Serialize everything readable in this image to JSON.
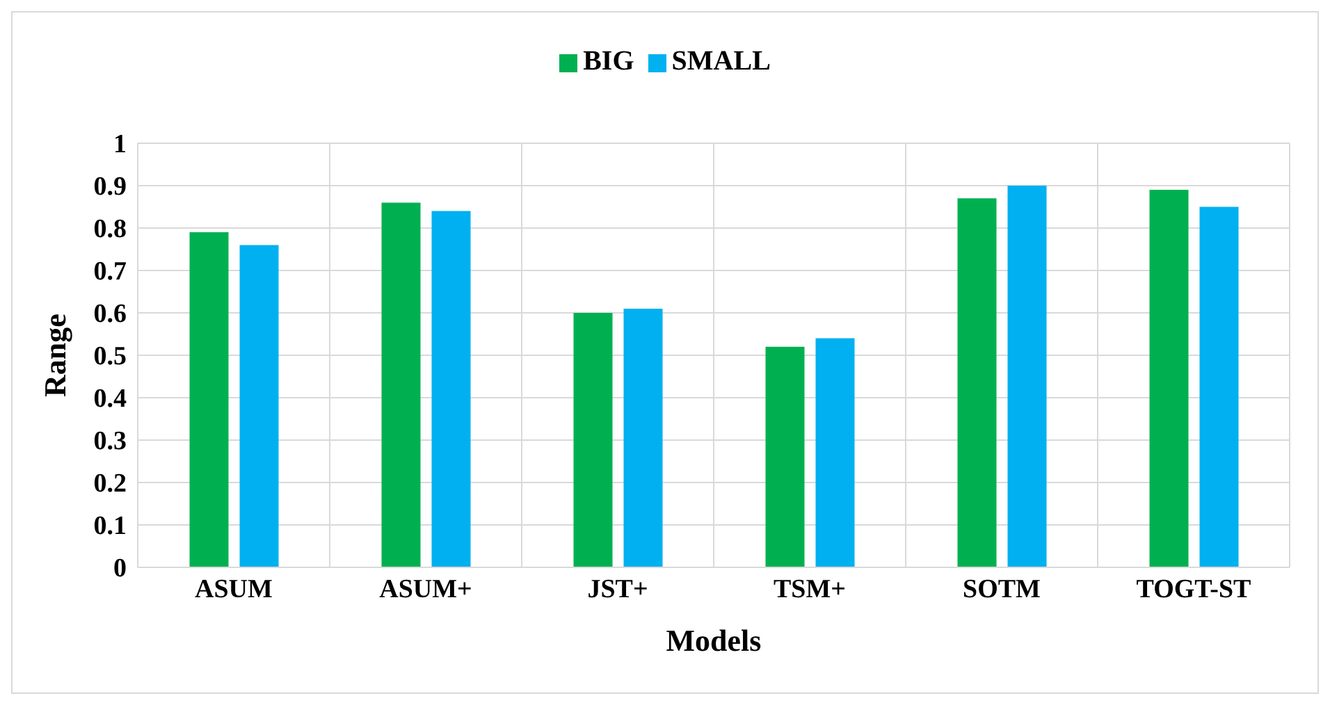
{
  "chart_data": {
    "type": "bar",
    "categories": [
      "ASUM",
      "ASUM+",
      "JST+",
      "TSM+",
      "SOTM",
      "TOGT-ST"
    ],
    "series": [
      {
        "name": "BIG",
        "color": "#00b050",
        "values": [
          0.79,
          0.86,
          0.6,
          0.52,
          0.87,
          0.89
        ]
      },
      {
        "name": "SMALL",
        "color": "#00b0f0",
        "values": [
          0.76,
          0.84,
          0.61,
          0.54,
          0.9,
          0.85
        ]
      }
    ],
    "xlabel": "Models",
    "ylabel": "Range",
    "ylim": [
      0,
      1
    ],
    "yticks": [
      0,
      0.1,
      0.2,
      0.3,
      0.4,
      0.5,
      0.6,
      0.7,
      0.8,
      0.9,
      1
    ],
    "grid": true,
    "legend": "top"
  }
}
